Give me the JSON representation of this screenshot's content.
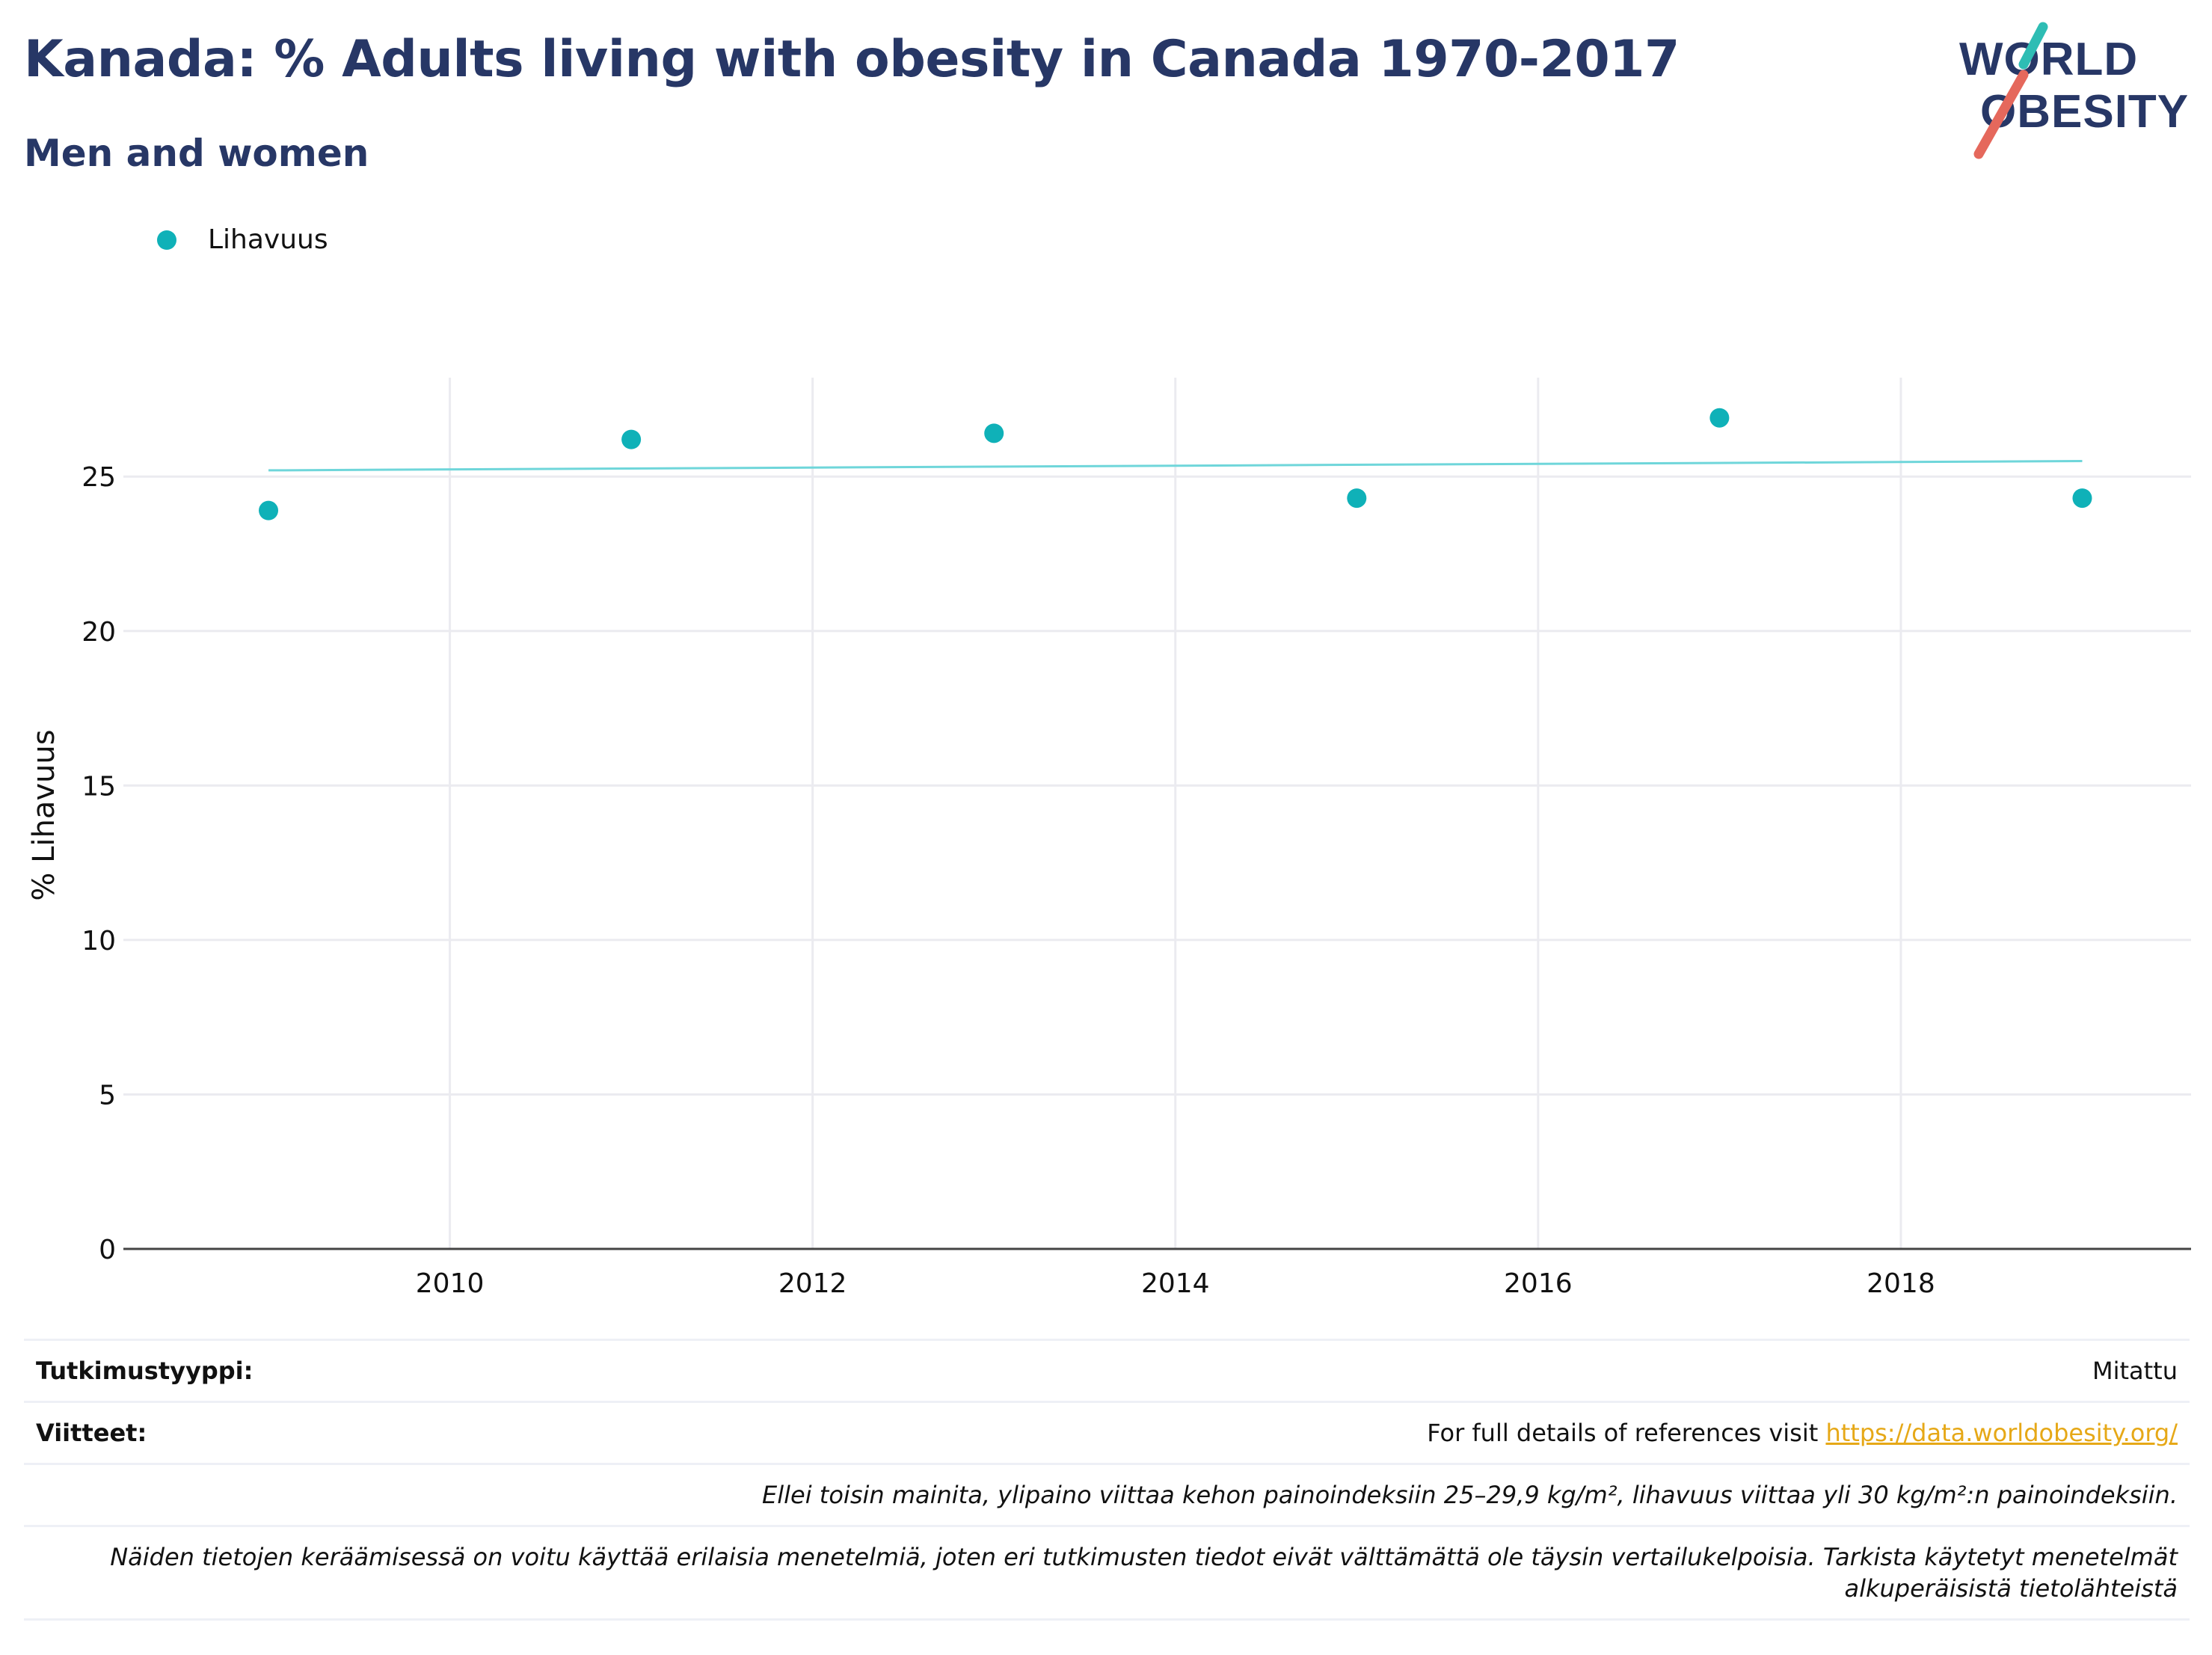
{
  "header": {
    "title": "Kanada: % Adults living with obesity in Canada 1970-2017",
    "subtitle": "Men and women",
    "logo": {
      "line1": "WORLD",
      "line2": "OBESITY",
      "colors": {
        "text": "#273766",
        "teal": "#2ebdb4",
        "coral": "#e5685c"
      }
    }
  },
  "legend": {
    "label": "Lihavuus",
    "color": "#0fb1b8"
  },
  "chart_data": {
    "type": "scatter",
    "title": "Kanada: % Adults living with obesity in Canada 1970-2017",
    "subtitle": "Men and women",
    "xlabel": "",
    "ylabel": "% Lihavuus",
    "xlim": [
      2008.2,
      2019.6
    ],
    "ylim": [
      0,
      28.2
    ],
    "x_ticks": [
      2010,
      2012,
      2014,
      2016,
      2018
    ],
    "y_ticks": [
      0,
      5,
      10,
      15,
      20,
      25
    ],
    "grid": true,
    "legend_position": "top-left",
    "series": [
      {
        "name": "Lihavuus",
        "color": "#0fb1b8",
        "x": [
          2009,
          2011,
          2013,
          2015,
          2017,
          2019
        ],
        "y": [
          23.9,
          26.2,
          26.4,
          24.3,
          26.9,
          24.3
        ]
      }
    ],
    "trendline": {
      "color": "#6fd6da",
      "x": [
        2009,
        2019
      ],
      "y": [
        25.2,
        25.5
      ]
    }
  },
  "info": {
    "study_type_key": "Tutkimustyyppi:",
    "study_type_value": "Mitattu",
    "references_key": "Viitteet:",
    "references_text": "For full details of references visit ",
    "references_link": "https://data.worldobesity.org/",
    "note1": "Ellei toisin mainita, ylipaino viittaa kehon painoindeksiin 25–29,9 kg/m², lihavuus viittaa yli 30 kg/m²:n painoindeksiin.",
    "note2_line1": "Näiden tietojen keräämisessä on voitu käyttää erilaisia menetelmiä, joten eri tutkimusten tiedot eivät välttämättä ole täysin vertailukelpoisia. Tarkista käytetyt menetelmät",
    "note2_line2": "alkuperäisistä tietolähteistä"
  }
}
